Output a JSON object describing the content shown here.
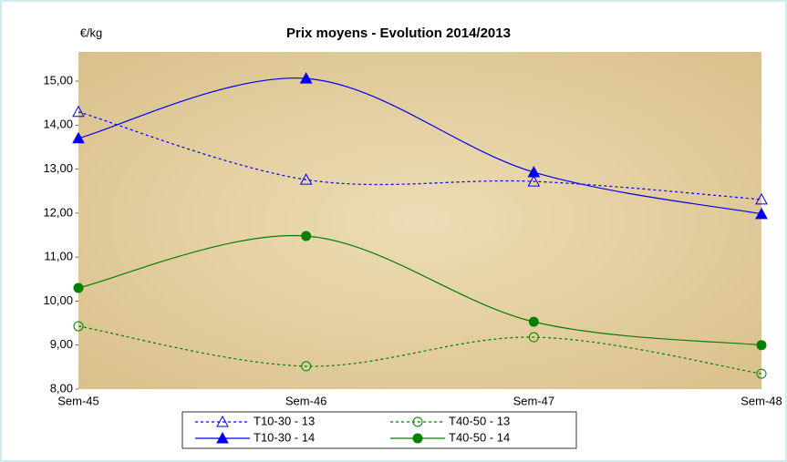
{
  "chart_data": {
    "type": "line",
    "title": "Prix moyens - Evolution 2014/2013",
    "y_label": "€/kg",
    "categories": [
      "Sem-45",
      "Sem-46",
      "Sem-47",
      "Sem-48"
    ],
    "ylim": [
      8,
      15
    ],
    "yticks": [
      {
        "value": 8,
        "label": "8,00"
      },
      {
        "value": 9,
        "label": "9,00"
      },
      {
        "value": 10,
        "label": "10,00"
      },
      {
        "value": 11,
        "label": "11,00"
      },
      {
        "value": 12,
        "label": "12,00"
      },
      {
        "value": 13,
        "label": "13,00"
      },
      {
        "value": 14,
        "label": "14,00"
      },
      {
        "value": 15,
        "label": "15,00"
      }
    ],
    "smooth": true,
    "series": [
      {
        "name": "T10-30 - 13",
        "color": "#0000ee",
        "dashed": true,
        "marker": "triangle",
        "filled": false,
        "values": [
          14.3,
          12.76,
          12.72,
          12.31
        ]
      },
      {
        "name": "T40-50 - 13",
        "color": "#008000",
        "dashed": true,
        "marker": "circle",
        "filled": false,
        "values": [
          9.43,
          8.52,
          9.18,
          8.35
        ]
      },
      {
        "name": "T10-30 - 14",
        "color": "#0000ee",
        "dashed": false,
        "marker": "triangle",
        "filled": true,
        "values": [
          13.7,
          15.06,
          12.93,
          11.98
        ]
      },
      {
        "name": "T40-50 - 14",
        "color": "#008000",
        "dashed": false,
        "marker": "circle",
        "filled": true,
        "values": [
          10.3,
          11.48,
          9.53,
          9.0
        ]
      }
    ]
  }
}
